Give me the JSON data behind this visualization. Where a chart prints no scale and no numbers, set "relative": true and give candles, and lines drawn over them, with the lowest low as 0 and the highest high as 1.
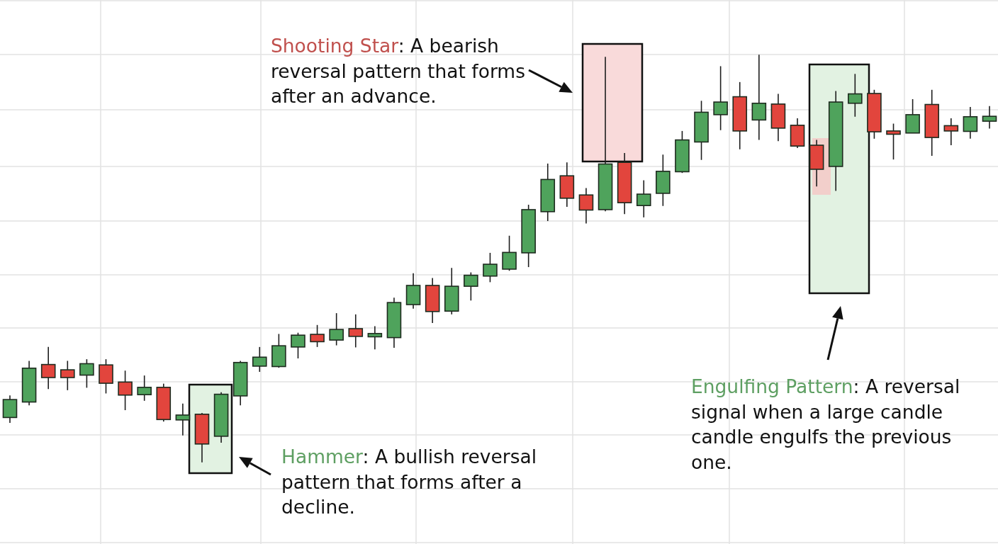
{
  "chart_data": {
    "type": "candlestick",
    "relative": true,
    "grid": true,
    "categories": [
      null,
      null,
      null,
      null,
      null,
      null,
      null,
      null,
      null,
      null,
      null,
      null,
      null,
      null,
      null,
      null,
      null,
      null,
      null,
      null,
      null,
      null,
      null,
      null,
      null,
      null,
      null,
      null,
      null,
      null,
      null,
      null,
      null,
      null,
      null,
      null,
      null,
      null,
      null,
      null,
      null,
      null,
      null,
      null,
      null,
      null,
      null,
      null,
      null,
      null,
      null,
      null
    ],
    "ohlc": [
      [
        0.11,
        0.164,
        0.097,
        0.154
      ],
      [
        0.148,
        0.249,
        0.14,
        0.231
      ],
      [
        0.24,
        0.283,
        0.18,
        0.208
      ],
      [
        0.227,
        0.249,
        0.177,
        0.208
      ],
      [
        0.214,
        0.253,
        0.183,
        0.242
      ],
      [
        0.239,
        0.253,
        0.169,
        0.194
      ],
      [
        0.197,
        0.225,
        0.128,
        0.165
      ],
      [
        0.166,
        0.213,
        0.151,
        0.184
      ],
      [
        0.184,
        0.193,
        0.1,
        0.105
      ],
      [
        0.104,
        0.144,
        0.066,
        0.116
      ],
      [
        0.118,
        0.121,
        0.0,
        0.045
      ],
      [
        0.064,
        0.172,
        0.048,
        0.167
      ],
      [
        0.163,
        0.249,
        0.14,
        0.245
      ],
      [
        0.236,
        0.283,
        0.222,
        0.258
      ],
      [
        0.235,
        0.315,
        0.232,
        0.286
      ],
      [
        0.283,
        0.318,
        0.255,
        0.312
      ],
      [
        0.314,
        0.337,
        0.283,
        0.296
      ],
      [
        0.3,
        0.366,
        0.287,
        0.326
      ],
      [
        0.328,
        0.363,
        0.282,
        0.309
      ],
      [
        0.308,
        0.334,
        0.277,
        0.316
      ],
      [
        0.306,
        0.404,
        0.281,
        0.392
      ],
      [
        0.387,
        0.464,
        0.377,
        0.434
      ],
      [
        0.434,
        0.452,
        0.342,
        0.37
      ],
      [
        0.371,
        0.477,
        0.363,
        0.432
      ],
      [
        0.432,
        0.466,
        0.397,
        0.459
      ],
      [
        0.457,
        0.514,
        0.442,
        0.486
      ],
      [
        0.474,
        0.556,
        0.47,
        0.515
      ],
      [
        0.514,
        0.632,
        0.479,
        0.62
      ],
      [
        0.615,
        0.733,
        0.592,
        0.694
      ],
      [
        0.703,
        0.736,
        0.627,
        0.648
      ],
      [
        0.656,
        0.673,
        0.586,
        0.619
      ],
      [
        0.62,
        0.995,
        0.616,
        0.732
      ],
      [
        0.736,
        0.759,
        0.609,
        0.637
      ],
      [
        0.63,
        0.692,
        0.601,
        0.658
      ],
      [
        0.66,
        0.755,
        0.629,
        0.714
      ],
      [
        0.713,
        0.813,
        0.71,
        0.791
      ],
      [
        0.786,
        0.887,
        0.742,
        0.859
      ],
      [
        0.853,
        0.972,
        0.815,
        0.884
      ],
      [
        0.897,
        0.933,
        0.768,
        0.813
      ],
      [
        0.84,
        1.0,
        0.791,
        0.881
      ],
      [
        0.879,
        0.904,
        0.788,
        0.82
      ],
      [
        0.827,
        0.844,
        0.771,
        0.776
      ],
      [
        0.778,
        0.791,
        0.677,
        0.719
      ],
      [
        0.726,
        0.911,
        0.666,
        0.884
      ],
      [
        0.881,
        0.953,
        0.848,
        0.904
      ],
      [
        0.905,
        0.914,
        0.794,
        0.811
      ],
      [
        0.813,
        0.831,
        0.743,
        0.805
      ],
      [
        0.808,
        0.891,
        0.808,
        0.853
      ],
      [
        0.878,
        0.914,
        0.752,
        0.797
      ],
      [
        0.826,
        0.844,
        0.778,
        0.813
      ],
      [
        0.812,
        0.872,
        0.794,
        0.848
      ],
      [
        0.837,
        0.874,
        0.819,
        0.849
      ]
    ],
    "colors": [
      "#4fa35c",
      "#4fa35c",
      "#e2453d",
      "#e2453d",
      "#4fa35c",
      "#e2453d",
      "#e2453d",
      "#4fa35c",
      "#e2453d",
      "#4fa35c",
      "#e2453d",
      "#4fa35c",
      "#4fa35c",
      "#4fa35c",
      "#4fa35c",
      "#4fa35c",
      "#e2453d",
      "#4fa35c",
      "#e2453d",
      "#4fa35c",
      "#4fa35c",
      "#4fa35c",
      "#e2453d",
      "#4fa35c",
      "#4fa35c",
      "#4fa35c",
      "#4fa35c",
      "#4fa35c",
      "#4fa35c",
      "#e2453d",
      "#e2453d",
      "#4fa35c",
      "#e2453d",
      "#4fa35c",
      "#4fa35c",
      "#4fa35c",
      "#4fa35c",
      "#4fa35c",
      "#e2453d",
      "#4fa35c",
      "#e2453d",
      "#e2453d",
      "#e2453d",
      "#4fa35c",
      "#4fa35c",
      "#e2453d",
      "#e2453d",
      "#4fa35c",
      "#e2453d",
      "#e2453d",
      "#4fa35c",
      "#4fa35c"
    ],
    "annotations": [
      "Hammer: A bullish reversal pattern that forms after a decline.",
      "Shooting Star: A bearish reversal pattern that forms after an advance.",
      "Engulfing Pattern: A reversal signal when a large candle candle engulfs the previous one."
    ]
  }
}
